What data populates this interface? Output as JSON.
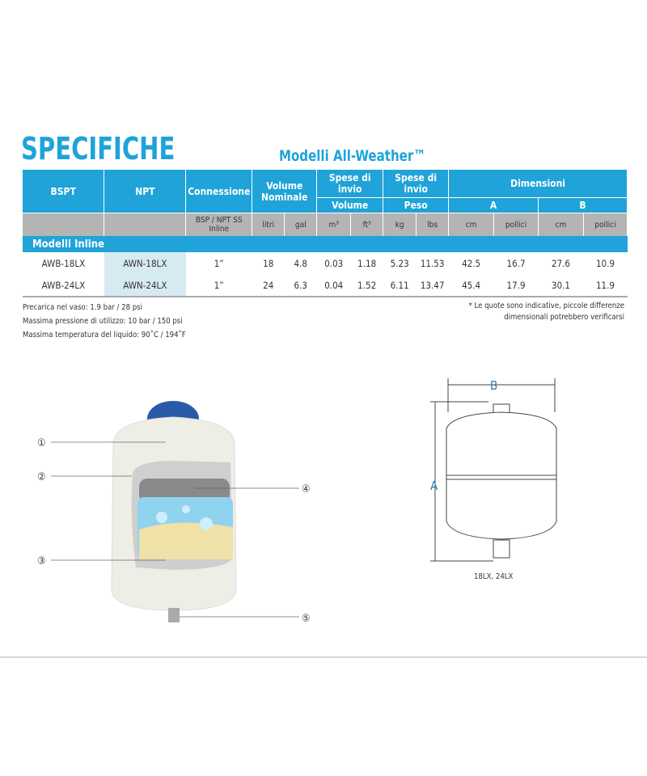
{
  "title": "SPECIFICHE",
  "subtitle": "Modelli All-Weather™",
  "table": {
    "headers": {
      "bspt": "BSPT",
      "npt": "NPT",
      "connessione": "Connessione",
      "volume": "Volume Nominale",
      "spese_volume": "Spese di invio",
      "spese_volume_sub": "Volume",
      "spese_peso": "Spese di invio",
      "spese_peso_sub": "Peso",
      "dimensioni": "Dimensioni",
      "a": "A",
      "b": "B"
    },
    "units": [
      "",
      "",
      "BSP / NPT SS Inline",
      "litri",
      "gal",
      "m³",
      "ft³",
      "kg",
      "lbs",
      "cm",
      "pollici",
      "cm",
      "pollici"
    ],
    "section": "Modelli Inline",
    "rows": [
      [
        "AWB-18LX",
        "AWN-18LX",
        "1”",
        "18",
        "4.8",
        "0.03",
        "1.18",
        "5.23",
        "11.53",
        "42.5",
        "16.7",
        "27.6",
        "10.9"
      ],
      [
        "AWB-24LX",
        "AWN-24LX",
        "1”",
        "24",
        "6.3",
        "0.04",
        "1.52",
        "6.11",
        "13.47",
        "45.4",
        "17.9",
        "30.1",
        "11.9"
      ]
    ]
  },
  "notes": [
    "Precarica nel vaso: 1.9 bar / 28 psi",
    "Massima pressione di utilizzo: 10 bar / 150 psi",
    "Massima temperatura del liquido:  90˚C / 194˚F"
  ],
  "disclaimer": [
    "* Le quote sono indicative, piccole differenze",
    "dimensionali potrebbero verificarsi"
  ],
  "diagram": {
    "callouts": [
      "①",
      "②",
      "③",
      "④",
      "⑤"
    ],
    "dim_a": "A",
    "dim_b": "B",
    "models": "18LX, 24LX"
  },
  "colors": {
    "accent": "#1fa3d8",
    "gray": "#b4b4b4",
    "npt_bg": "#d6eaf2"
  }
}
